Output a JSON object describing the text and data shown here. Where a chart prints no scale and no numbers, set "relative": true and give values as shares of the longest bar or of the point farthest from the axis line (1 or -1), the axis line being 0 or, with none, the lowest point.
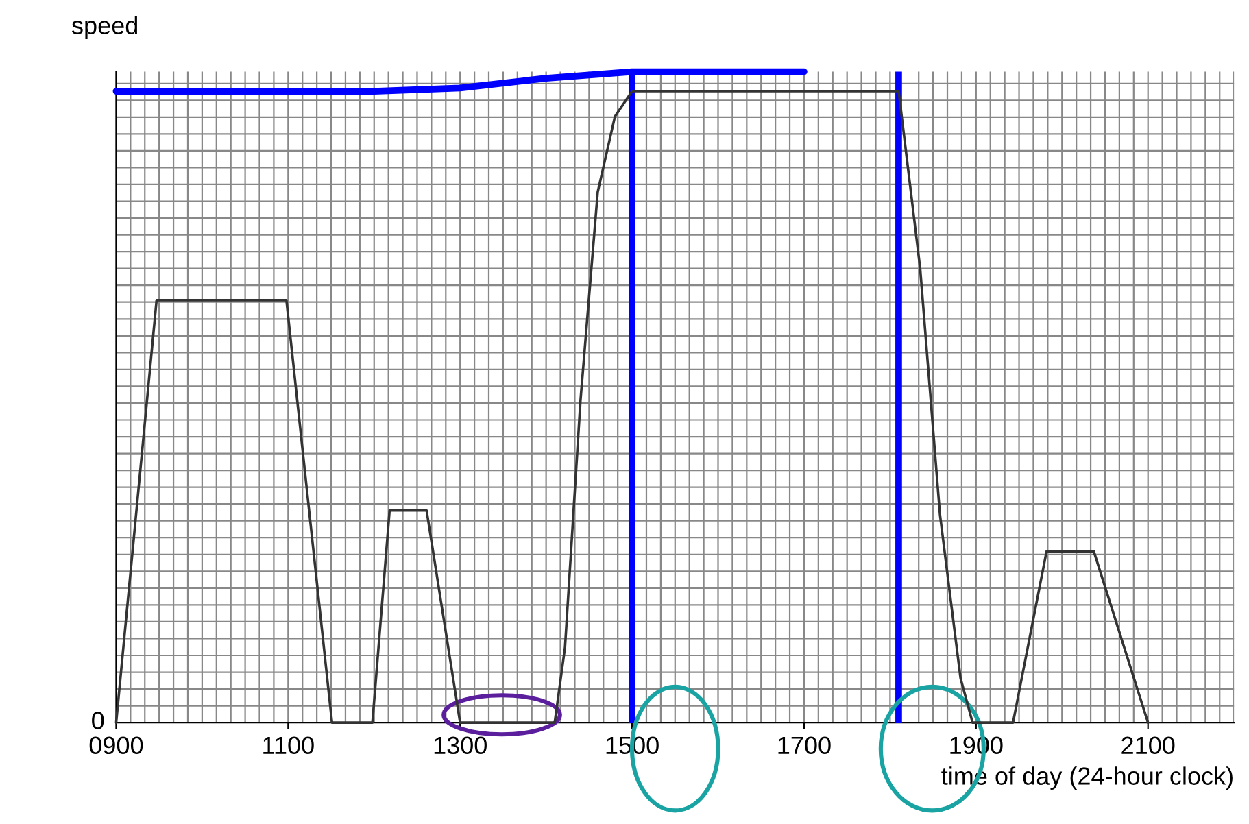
{
  "chart_data": {
    "type": "line",
    "xlabel": "time of day (24-hour clock)",
    "ylabel": "speed",
    "relative": true,
    "x": [
      900,
      947,
      1098,
      1151,
      1198,
      1218,
      1261,
      1300,
      1410,
      1422,
      1440,
      1460,
      1480,
      1500,
      1810,
      1835,
      1858,
      1882,
      1896,
      1943,
      1982,
      2037,
      2100
    ],
    "series": [
      {
        "color": "#333333",
        "values": [
          0,
          0.649,
          0.649,
          0,
          0,
          0.326,
          0.326,
          0,
          0,
          0.116,
          0.495,
          0.815,
          0.931,
          0.97,
          0.97,
          0.698,
          0.32,
          0.068,
          0,
          0,
          0.263,
          0.263,
          0
        ]
      },
      {
        "color": "#0000ff",
        "x": [
          900,
          1200,
          1300,
          1400,
          1500,
          1700
        ],
        "values": [
          0.97,
          0.97,
          0.975,
          0.99,
          1.0,
          1.0
        ]
      }
    ],
    "xlim": [
      900,
      2200
    ],
    "xticks": [
      {
        "value": 900,
        "label": "0900"
      },
      1100,
      1300,
      1500,
      1700,
      1900,
      2100
    ],
    "annotations": [
      "0"
    ],
    "grid": true,
    "ref_lines": [
      {
        "axis": "x",
        "value": 1500,
        "color": "#0000ff"
      },
      {
        "axis": "x",
        "value": 1810,
        "color": "#0000ff"
      }
    ]
  }
}
